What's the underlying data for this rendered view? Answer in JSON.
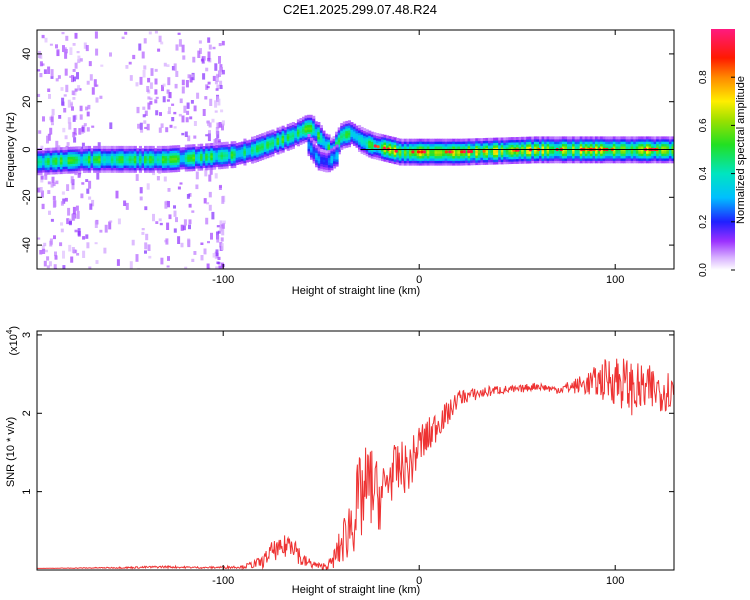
{
  "chart_data": [
    {
      "type": "heatmap",
      "title": "C2E1.2025.299.07.48.R24",
      "xlabel": "Height of straight line (km)",
      "ylabel": "Frequency (Hz)",
      "xlim": [
        -195,
        130
      ],
      "ylim": [
        -50,
        50
      ],
      "x_ticks": [
        -100,
        0,
        100
      ],
      "y_ticks": [
        -40,
        -20,
        0,
        20,
        40
      ],
      "grid": false,
      "colorbar": {
        "label": "Normalized spectral amplitude",
        "range": [
          0,
          1
        ],
        "ticks": [
          0.0,
          0.2,
          0.4,
          0.6,
          0.8
        ],
        "tick_labels": [
          "0.0",
          "0.2",
          "0.4",
          "0.6",
          "0.8"
        ]
      },
      "ridge": {
        "x": [
          -195,
          -170,
          -150,
          -130,
          -110,
          -95,
          -85,
          -75,
          -65,
          -58,
          -55,
          -50,
          -45,
          -40,
          -35,
          -30,
          -25,
          -20,
          -15,
          -10,
          0,
          20,
          40,
          60,
          80,
          100,
          120,
          130
        ],
        "y": [
          -5,
          -4,
          -4,
          -4,
          -3,
          -2,
          0,
          3,
          6,
          9,
          9,
          4,
          -1,
          6,
          7,
          4,
          2,
          1,
          0,
          -1,
          -1,
          -1,
          -0.5,
          0,
          0,
          0,
          0,
          0
        ]
      },
      "secondary_ridge": {
        "x": [
          -57,
          -52,
          -47,
          -42
        ],
        "y": [
          2,
          -4,
          -5,
          -2
        ]
      },
      "reference_line": {
        "x": [
          -30,
          130
        ],
        "y": [
          0,
          0
        ]
      }
    },
    {
      "type": "line",
      "xlabel": "Height of straight line (km)",
      "ylabel": "SNR (10 * v/v)",
      "multiplier_label": "(x10",
      "multiplier_exp": "4",
      "xlim": [
        -195,
        130
      ],
      "ylim": [
        0,
        3.05
      ],
      "x_ticks": [
        -100,
        0,
        100
      ],
      "y_ticks": [
        1,
        2,
        3
      ],
      "series": [
        {
          "color": "#ee3333",
          "x": [
            -195,
            -150,
            -130,
            -110,
            -90,
            -80,
            -75,
            -70,
            -65,
            -60,
            -55,
            -50,
            -45,
            -40,
            -35,
            -30,
            -25,
            -20,
            -15,
            -10,
            -5,
            0,
            5,
            10,
            15,
            20,
            30,
            40,
            50,
            60,
            70,
            80,
            90,
            100,
            110,
            120,
            130
          ],
          "values": [
            0.02,
            0.03,
            0.04,
            0.03,
            0.04,
            0.1,
            0.25,
            0.25,
            0.4,
            0.12,
            0.08,
            0.04,
            0.08,
            0.3,
            0.6,
            0.9,
            1.1,
            0.9,
            1.2,
            1.3,
            1.3,
            1.6,
            1.7,
            1.9,
            2.0,
            2.2,
            2.25,
            2.3,
            2.3,
            2.35,
            2.3,
            2.35,
            2.4,
            2.45,
            2.3,
            2.3,
            2.3
          ],
          "noise": [
            0.0,
            0.01,
            0.015,
            0.01,
            0.02,
            0.08,
            0.12,
            0.14,
            0.2,
            0.1,
            0.06,
            0.04,
            0.08,
            0.25,
            0.45,
            0.6,
            0.55,
            0.4,
            0.35,
            0.35,
            0.3,
            0.3,
            0.25,
            0.2,
            0.15,
            0.1,
            0.08,
            0.06,
            0.05,
            0.05,
            0.05,
            0.1,
            0.2,
            0.35,
            0.35,
            0.3,
            0.25
          ]
        }
      ]
    }
  ]
}
